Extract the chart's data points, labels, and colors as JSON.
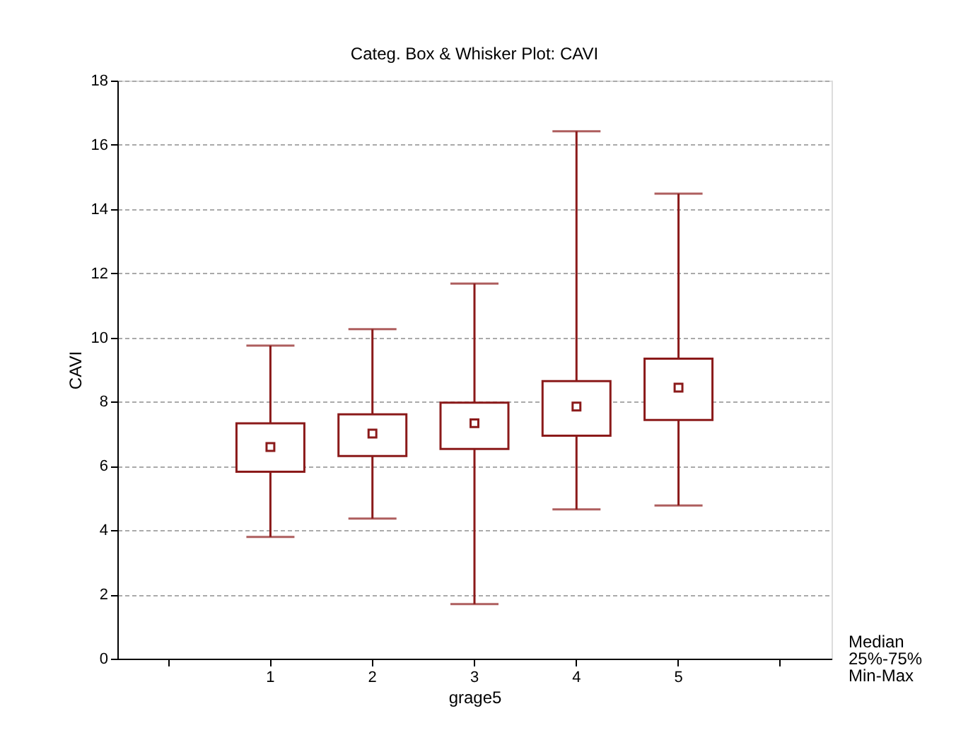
{
  "chart_data": {
    "type": "box",
    "title": "Categ. Box & Whisker Plot:    CAVI",
    "xlabel": "grage5",
    "ylabel": "CAVI",
    "categories": [
      null,
      "1",
      "2",
      "3",
      "4",
      "5",
      null
    ],
    "boxes": [
      null,
      {
        "low": 3.79,
        "q1": 5.82,
        "median": 6.59,
        "q3": 7.33,
        "high": 9.75
      },
      {
        "low": 4.36,
        "q1": 6.31,
        "median": 7.01,
        "q3": 7.61,
        "high": 10.26
      },
      {
        "low": 1.7,
        "q1": 6.53,
        "median": 7.33,
        "q3": 7.97,
        "high": 11.68
      },
      {
        "low": 4.65,
        "q1": 6.94,
        "median": 7.85,
        "q3": 8.64,
        "high": 16.42
      },
      {
        "low": 4.77,
        "q1": 7.43,
        "median": 8.44,
        "q3": 9.34,
        "high": 14.48
      },
      null
    ],
    "color": "#8b1a1a",
    "ylim": [
      0,
      18
    ],
    "yticks": [
      0,
      2,
      4,
      6,
      8,
      10,
      12,
      14,
      16,
      18
    ],
    "grid": "y",
    "marker": "square",
    "annotations": [
      "Median",
      "25%-75%",
      "Min-Max"
    ]
  }
}
